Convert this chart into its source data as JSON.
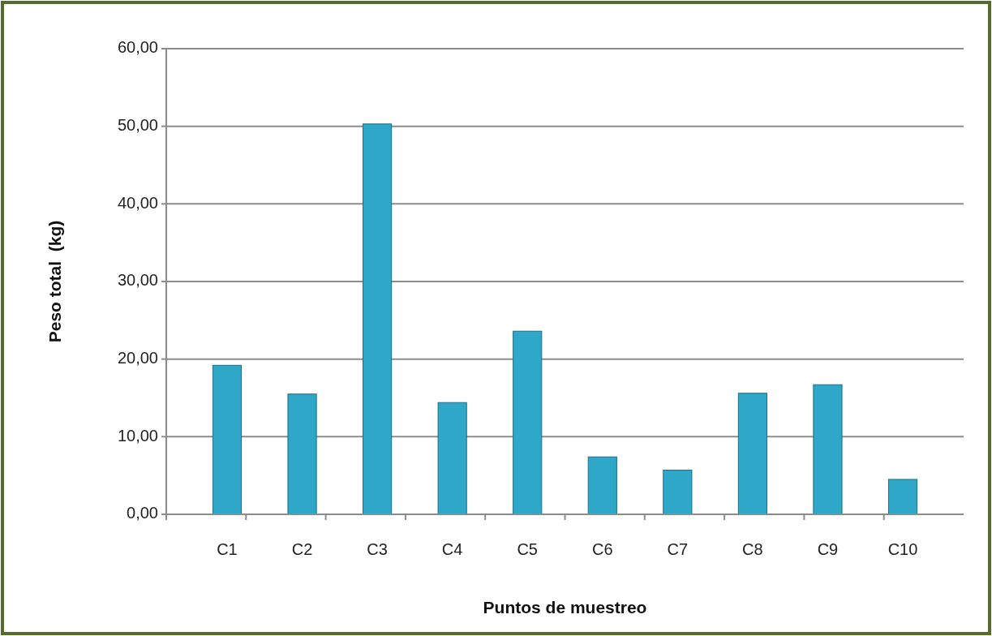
{
  "chart_data": {
    "type": "bar",
    "xlabel": "Puntos de muestreo",
    "ylabel": "Peso total  (kg)",
    "categories": [
      "C1",
      "C2",
      "C3",
      "C4",
      "C5",
      "C6",
      "C7",
      "C8",
      "C9",
      "C10"
    ],
    "values": [
      19.2,
      15.5,
      50.3,
      14.4,
      23.6,
      7.4,
      5.7,
      15.6,
      16.7,
      4.5
    ],
    "color": "#2ea7c9",
    "ylim": [
      0,
      60
    ],
    "yticks": [
      {
        "value": 0,
        "label": "0,00"
      },
      {
        "value": 10,
        "label": "10,00"
      },
      {
        "value": 20,
        "label": "20,00"
      },
      {
        "value": 30,
        "label": "30,00"
      },
      {
        "value": 40,
        "label": "40,00"
      },
      {
        "value": 50,
        "label": "50,00"
      },
      {
        "value": 60,
        "label": "60,00"
      }
    ],
    "grid": "y"
  }
}
